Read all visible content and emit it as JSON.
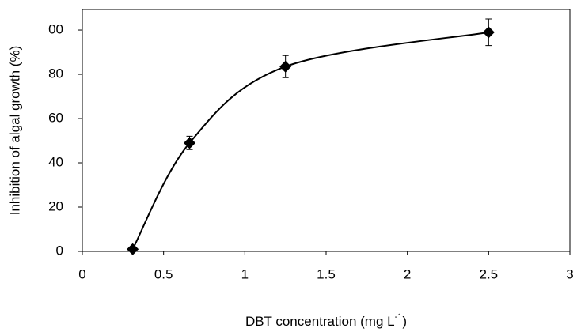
{
  "chart_data": {
    "type": "scatter",
    "x_label": [
      "DBT concentration (mg L",
      "-1",
      ")"
    ],
    "y_label": "Inhibition of algal growth (%)",
    "x": [
      0.31,
      0.66,
      1.25,
      2.5
    ],
    "values": [
      1,
      49,
      83.5,
      99
    ],
    "errors": [
      0.5,
      3,
      5,
      6
    ],
    "color": "#000000",
    "line": "smooth",
    "xlim": [
      0,
      3
    ],
    "xticks": [
      0,
      0.5,
      1,
      1.5,
      2,
      2.5,
      3
    ],
    "ylim": [
      0,
      109.3
    ],
    "yticks": [
      0,
      20,
      40,
      60,
      80,
      {
        "value": 100,
        "label": "00"
      }
    ]
  }
}
